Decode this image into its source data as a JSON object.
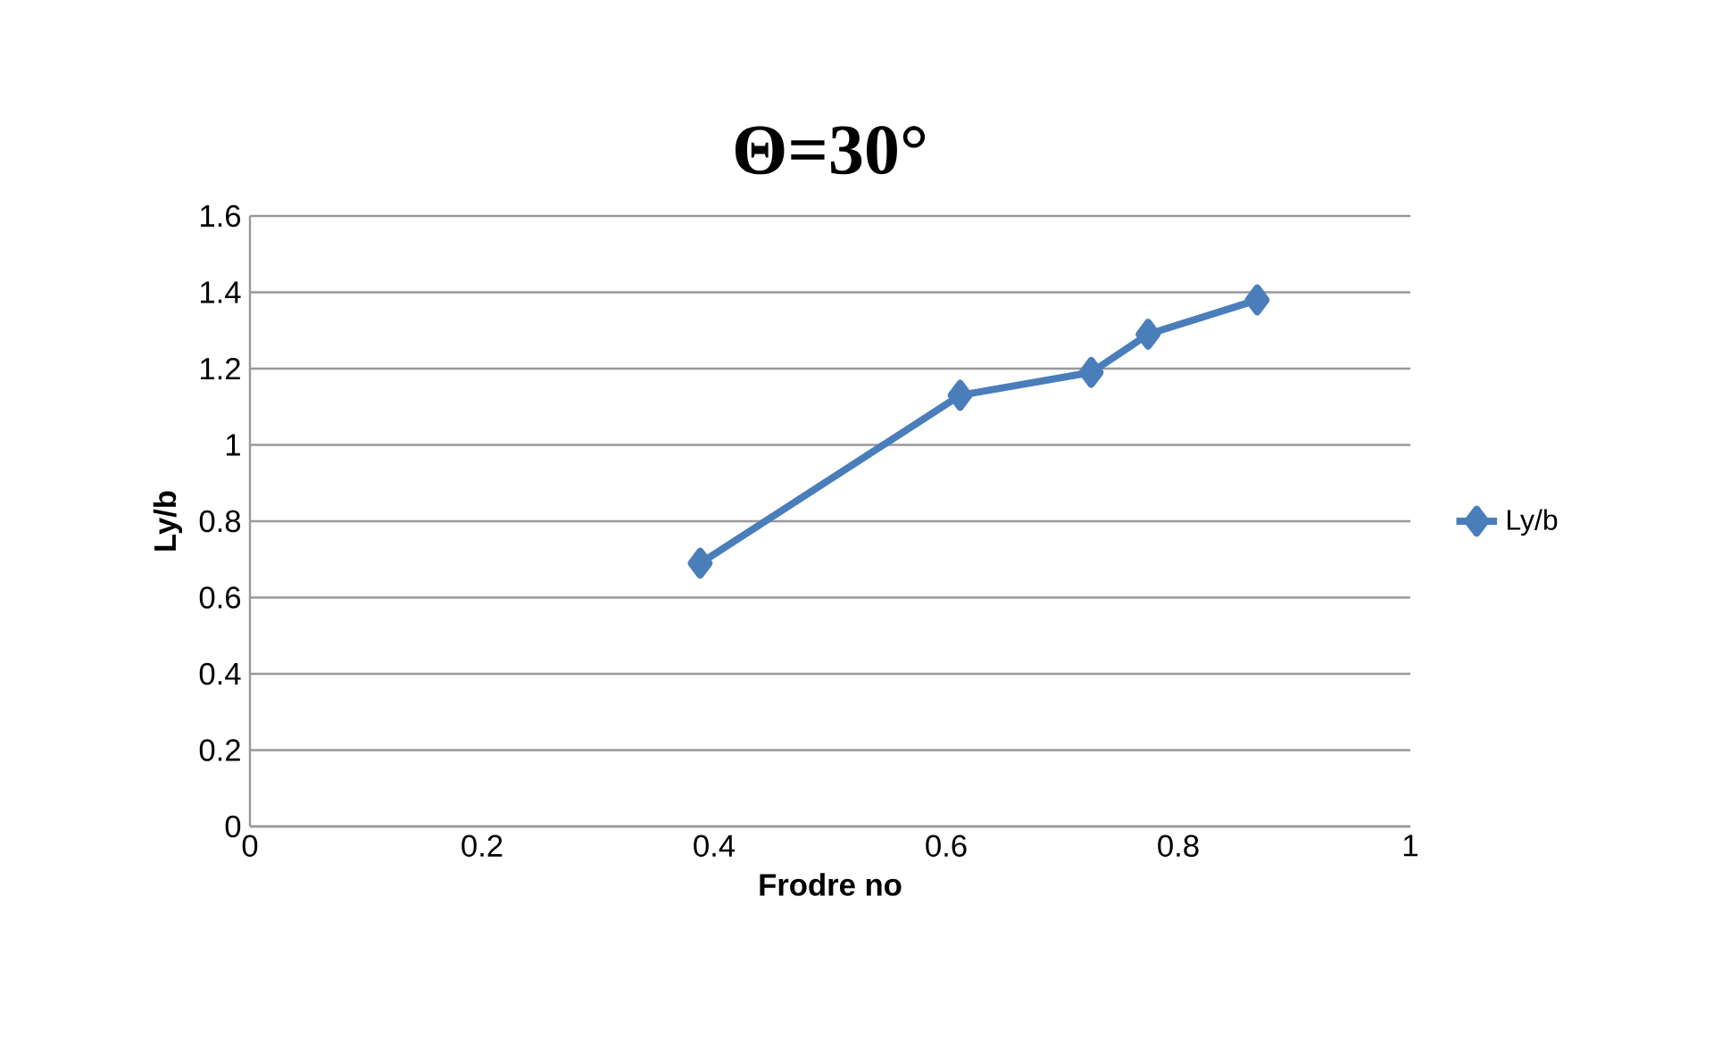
{
  "chart_data": {
    "type": "line",
    "title": "Θ=30°",
    "xlabel": "Frodre no",
    "ylabel": "Ly/b",
    "series": [
      {
        "name": "Ly/b",
        "color": "#4a7ebb",
        "x": [
          0.388,
          0.612,
          0.725,
          0.774,
          0.868
        ],
        "values": [
          0.69,
          1.13,
          1.19,
          1.29,
          1.38
        ]
      }
    ],
    "xlim": [
      0,
      1
    ],
    "xticks": [
      0,
      0.2,
      0.4,
      0.6,
      0.8,
      1
    ],
    "ylim": [
      0,
      1.6
    ],
    "yticks": [
      0,
      0.2,
      0.4,
      0.6,
      0.8,
      1,
      1.2,
      1.4,
      1.6
    ],
    "grid": "y",
    "legend": "right",
    "marker": "diamond",
    "line_style": "solid"
  }
}
